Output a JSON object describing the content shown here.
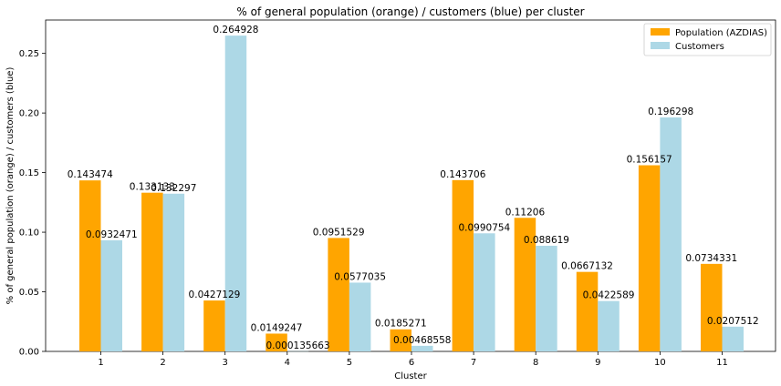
{
  "chart_data": {
    "type": "bar",
    "title": "% of general population (orange) / customers (blue) per cluster",
    "xlabel": "Cluster",
    "ylabel": "% of general population (orange) / customers (blue)",
    "categories": [
      "1",
      "2",
      "3",
      "4",
      "5",
      "6",
      "7",
      "8",
      "9",
      "10",
      "11"
    ],
    "series": [
      {
        "name": "Population (AZDIAS)",
        "color": "#ffa500",
        "values": [
          0.143474,
          0.133133,
          0.0427129,
          0.0149247,
          0.0951529,
          0.0185271,
          0.143706,
          0.11206,
          0.0667132,
          0.156157,
          0.0734331
        ],
        "labels": [
          "0.143474",
          "0.133133",
          "0.0427129",
          "0.0149247",
          "0.0951529",
          "0.0185271",
          "0.143706",
          "0.11206",
          "0.0667132",
          "0.156157",
          "0.0734331"
        ]
      },
      {
        "name": "Customers",
        "color": "#add8e6",
        "values": [
          0.0932471,
          0.132297,
          0.264928,
          0.000135663,
          0.0577035,
          0.00468558,
          0.0990754,
          0.088619,
          0.0422589,
          0.196298,
          0.0207512
        ],
        "labels": [
          "0.0932471",
          "0.132297",
          "0.264928",
          "0.000135663",
          "0.0577035",
          "0.00468558",
          "0.0990754",
          "0.088619",
          "0.0422589",
          "0.196298",
          "0.0207512"
        ]
      }
    ],
    "ylim": [
      0,
      0.278
    ],
    "yticks": [
      0.0,
      0.05,
      0.1,
      0.15,
      0.2,
      0.25
    ],
    "ytick_labels": [
      "0.00",
      "0.05",
      "0.10",
      "0.15",
      "0.20",
      "0.25"
    ],
    "grid": false,
    "legend_position": "top-right"
  }
}
